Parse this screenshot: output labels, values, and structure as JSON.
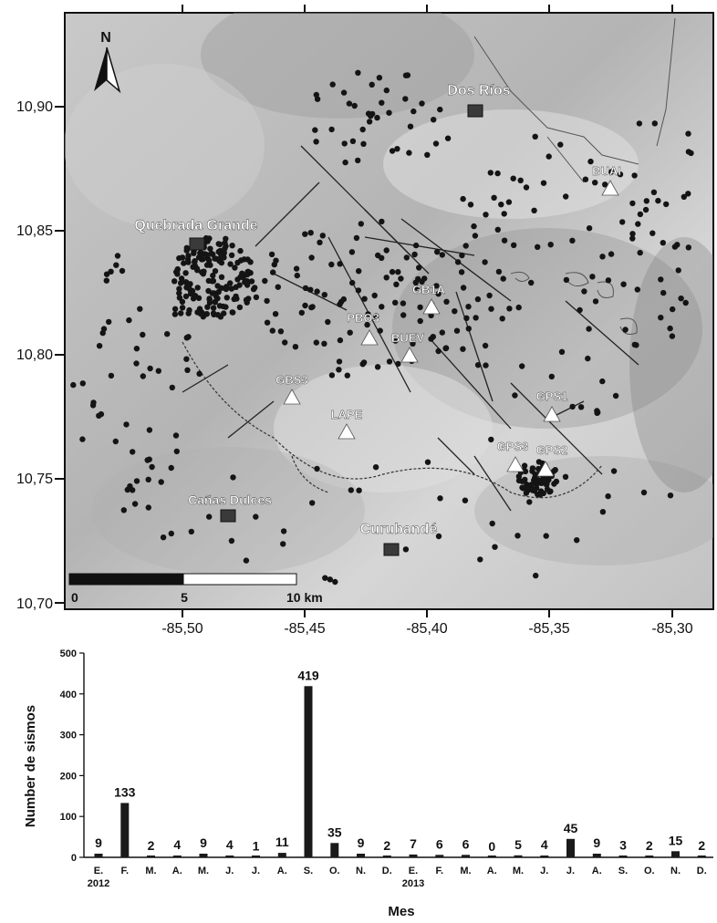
{
  "map": {
    "north_label": "N",
    "lat_ticks": [
      "10,90",
      "10,85",
      "10,80",
      "10,75",
      "10,70"
    ],
    "lon_ticks": [
      "-85,50",
      "-85,45",
      "-85,40",
      "-85,35",
      "-85,30"
    ],
    "scale_labels": [
      "0",
      "5",
      "10 km"
    ],
    "towns": [
      {
        "name": "Dos Ríos"
      },
      {
        "name": "Quebrada Grande"
      },
      {
        "name": "Cañas Dulces"
      },
      {
        "name": "Curubandé"
      }
    ],
    "stations": [
      {
        "name": "BUAI"
      },
      {
        "name": "GB1A"
      },
      {
        "name": "PBO3"
      },
      {
        "name": "BUEV"
      },
      {
        "name": "GBS3"
      },
      {
        "name": "LAPE"
      },
      {
        "name": "GPS1"
      },
      {
        "name": "GPS3"
      },
      {
        "name": "GPS2"
      }
    ],
    "colors": {
      "relief": "#bdbdbd",
      "epicenter": "#141414",
      "station": "#ffffff",
      "town": "#3a3a3a"
    }
  },
  "chart_data": {
    "type": "bar",
    "ylabel": "Number de sismos",
    "xlabel": "Mes",
    "ylim": [
      0,
      500
    ],
    "yticks": [
      "0",
      "100",
      "200",
      "300",
      "400",
      "500"
    ],
    "categories": [
      "E.",
      "F.",
      "M.",
      "A.",
      "M.",
      "J.",
      "J.",
      "A.",
      "S.",
      "O.",
      "N.",
      "D.",
      "E.",
      "F.",
      "M.",
      "A.",
      "M.",
      "J.",
      "J.",
      "A.",
      "S.",
      "O.",
      "N.",
      "D."
    ],
    "values": [
      9,
      133,
      2,
      4,
      9,
      4,
      1,
      11,
      419,
      35,
      9,
      2,
      7,
      6,
      6,
      0,
      5,
      4,
      45,
      9,
      3,
      2,
      15,
      2
    ],
    "year_labels": [
      "2012",
      "2013"
    ],
    "bar_color": "#1a1a1a"
  }
}
